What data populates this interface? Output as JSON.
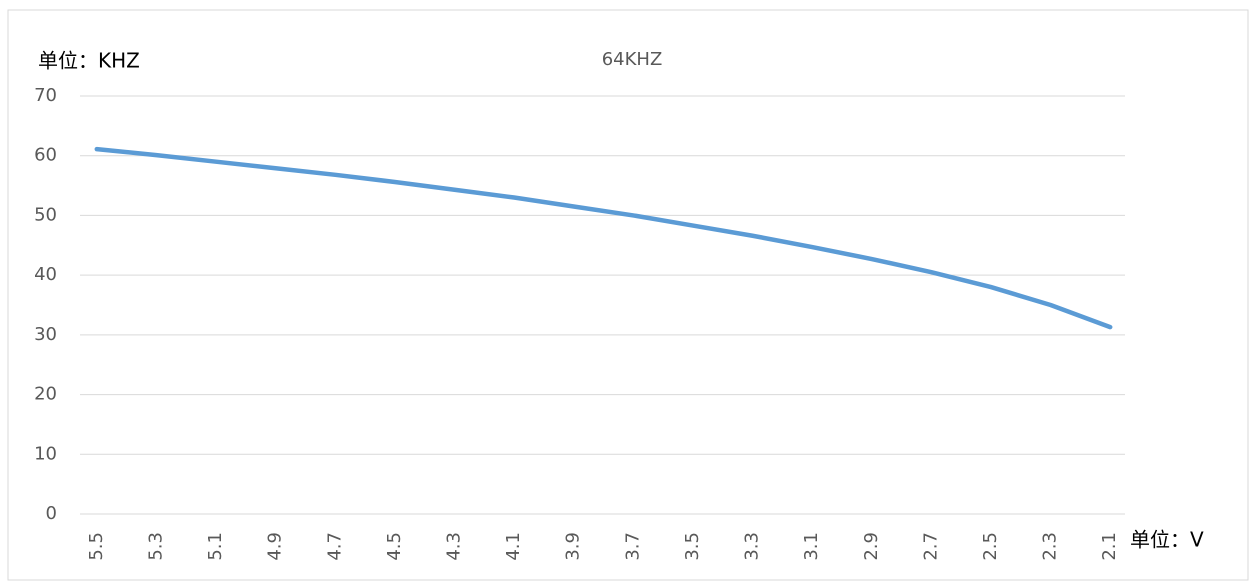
{
  "chart_data": {
    "type": "line",
    "title": "64KHZ",
    "y_label": "单位：KHZ",
    "x_label": "单位：V",
    "categories": [
      "5.5",
      "5.3",
      "5.1",
      "4.9",
      "4.7",
      "4.5",
      "4.3",
      "4.1",
      "3.9",
      "3.7",
      "3.5",
      "3.3",
      "3.1",
      "2.9",
      "2.7",
      "2.5",
      "2.3",
      "2.1"
    ],
    "series": [
      {
        "name": "64KHZ",
        "color": "#5b9bd5",
        "values": [
          61.1,
          60.1,
          59.0,
          57.9,
          56.8,
          55.6,
          54.3,
          53.0,
          51.5,
          50.0,
          48.3,
          46.6,
          44.7,
          42.7,
          40.5,
          38.0,
          35.0,
          31.3
        ]
      }
    ],
    "ylim": [
      0,
      70
    ],
    "yticks": [
      0,
      10,
      20,
      30,
      40,
      50,
      60,
      70
    ],
    "grid": true
  }
}
